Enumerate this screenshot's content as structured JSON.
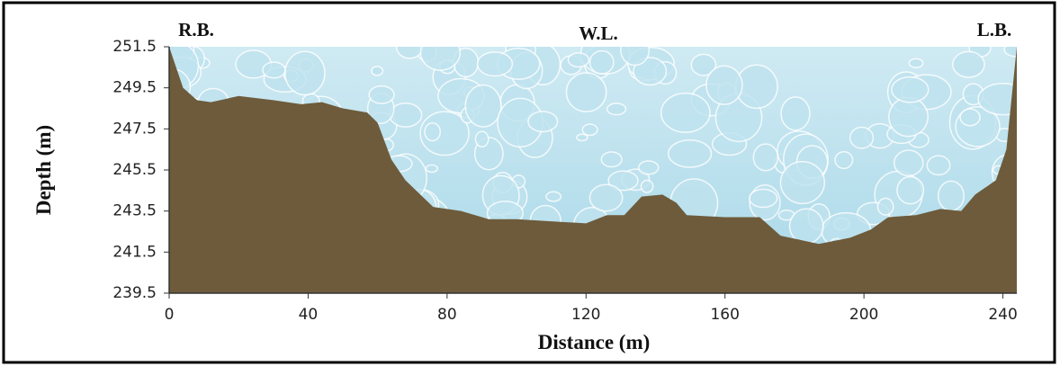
{
  "chart_data": {
    "type": "area",
    "x_label": "Distance (m)",
    "y_label": "Depth (m)",
    "annotations": [
      "R.B.",
      "W.L.",
      "L.B."
    ],
    "x": [
      0,
      2,
      4,
      8,
      12,
      20,
      30,
      38,
      44,
      50,
      57,
      60,
      64,
      68,
      76,
      84,
      92,
      100,
      110,
      120,
      126,
      131,
      136,
      142,
      146,
      149,
      160,
      170,
      176,
      187,
      196,
      202,
      207,
      215,
      222,
      228,
      232,
      238,
      241,
      244
    ],
    "values": [
      251.5,
      250.5,
      249.5,
      248.9,
      248.8,
      249.1,
      248.9,
      248.7,
      248.8,
      248.5,
      248.3,
      247.8,
      246.0,
      245.0,
      243.7,
      243.5,
      243.1,
      243.1,
      243.0,
      242.9,
      243.3,
      243.3,
      244.2,
      244.3,
      243.9,
      243.3,
      243.2,
      243.2,
      242.3,
      241.9,
      242.2,
      242.6,
      243.2,
      243.3,
      243.6,
      243.5,
      244.3,
      245.0,
      246.5,
      251.5
    ],
    "color": "#6e5b3b",
    "xlim": [
      0,
      244
    ],
    "xticks": [
      0,
      40,
      80,
      120,
      160,
      200,
      240
    ],
    "ylim": [
      239.5,
      251.5
    ],
    "yticks": [
      239.5,
      241.5,
      243.5,
      245.5,
      247.5,
      249.5,
      251.5
    ]
  }
}
